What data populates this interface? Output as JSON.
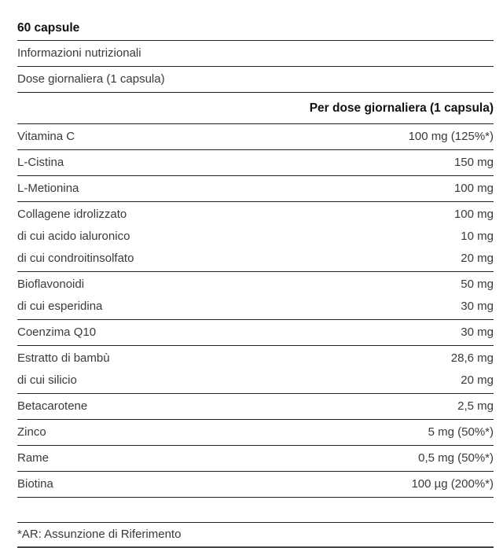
{
  "title": "60 capsule",
  "info_label": "Informazioni nutrizionali",
  "dose_label": "Dose giornaliera (1 capsula)",
  "column_header": "Per dose giornaliera (1 capsula)",
  "rows": [
    [
      {
        "name": "Vitamina C",
        "value": "100 mg (125%*)"
      }
    ],
    [
      {
        "name": "L-Cistina",
        "value": "150 mg"
      }
    ],
    [
      {
        "name": "L-Metionina",
        "value": "100 mg"
      }
    ],
    [
      {
        "name": "Collagene idrolizzato",
        "value": "100 mg"
      },
      {
        "name": "di cui acido ialuronico",
        "value": "10 mg"
      },
      {
        "name": "di cui condroitinsolfato",
        "value": "20 mg"
      }
    ],
    [
      {
        "name": "Bioflavonoidi",
        "value": "50 mg"
      },
      {
        "name": "di cui esperidina",
        "value": "30 mg"
      }
    ],
    [
      {
        "name": "Coenzima Q10",
        "value": "30 mg"
      }
    ],
    [
      {
        "name": "Estratto di bambù",
        "value": "28,6 mg"
      },
      {
        "name": "di cui silicio",
        "value": "20 mg"
      }
    ],
    [
      {
        "name": "Betacarotene",
        "value": "2,5 mg"
      }
    ],
    [
      {
        "name": "Zinco",
        "value": "5 mg (50%*)"
      }
    ],
    [
      {
        "name": "Rame",
        "value": "0,5 mg (50%*)"
      }
    ],
    [
      {
        "name": "Biotina",
        "value": "100 µg (200%*)"
      }
    ]
  ],
  "footnote": "*AR: Assunzione di Riferimento"
}
